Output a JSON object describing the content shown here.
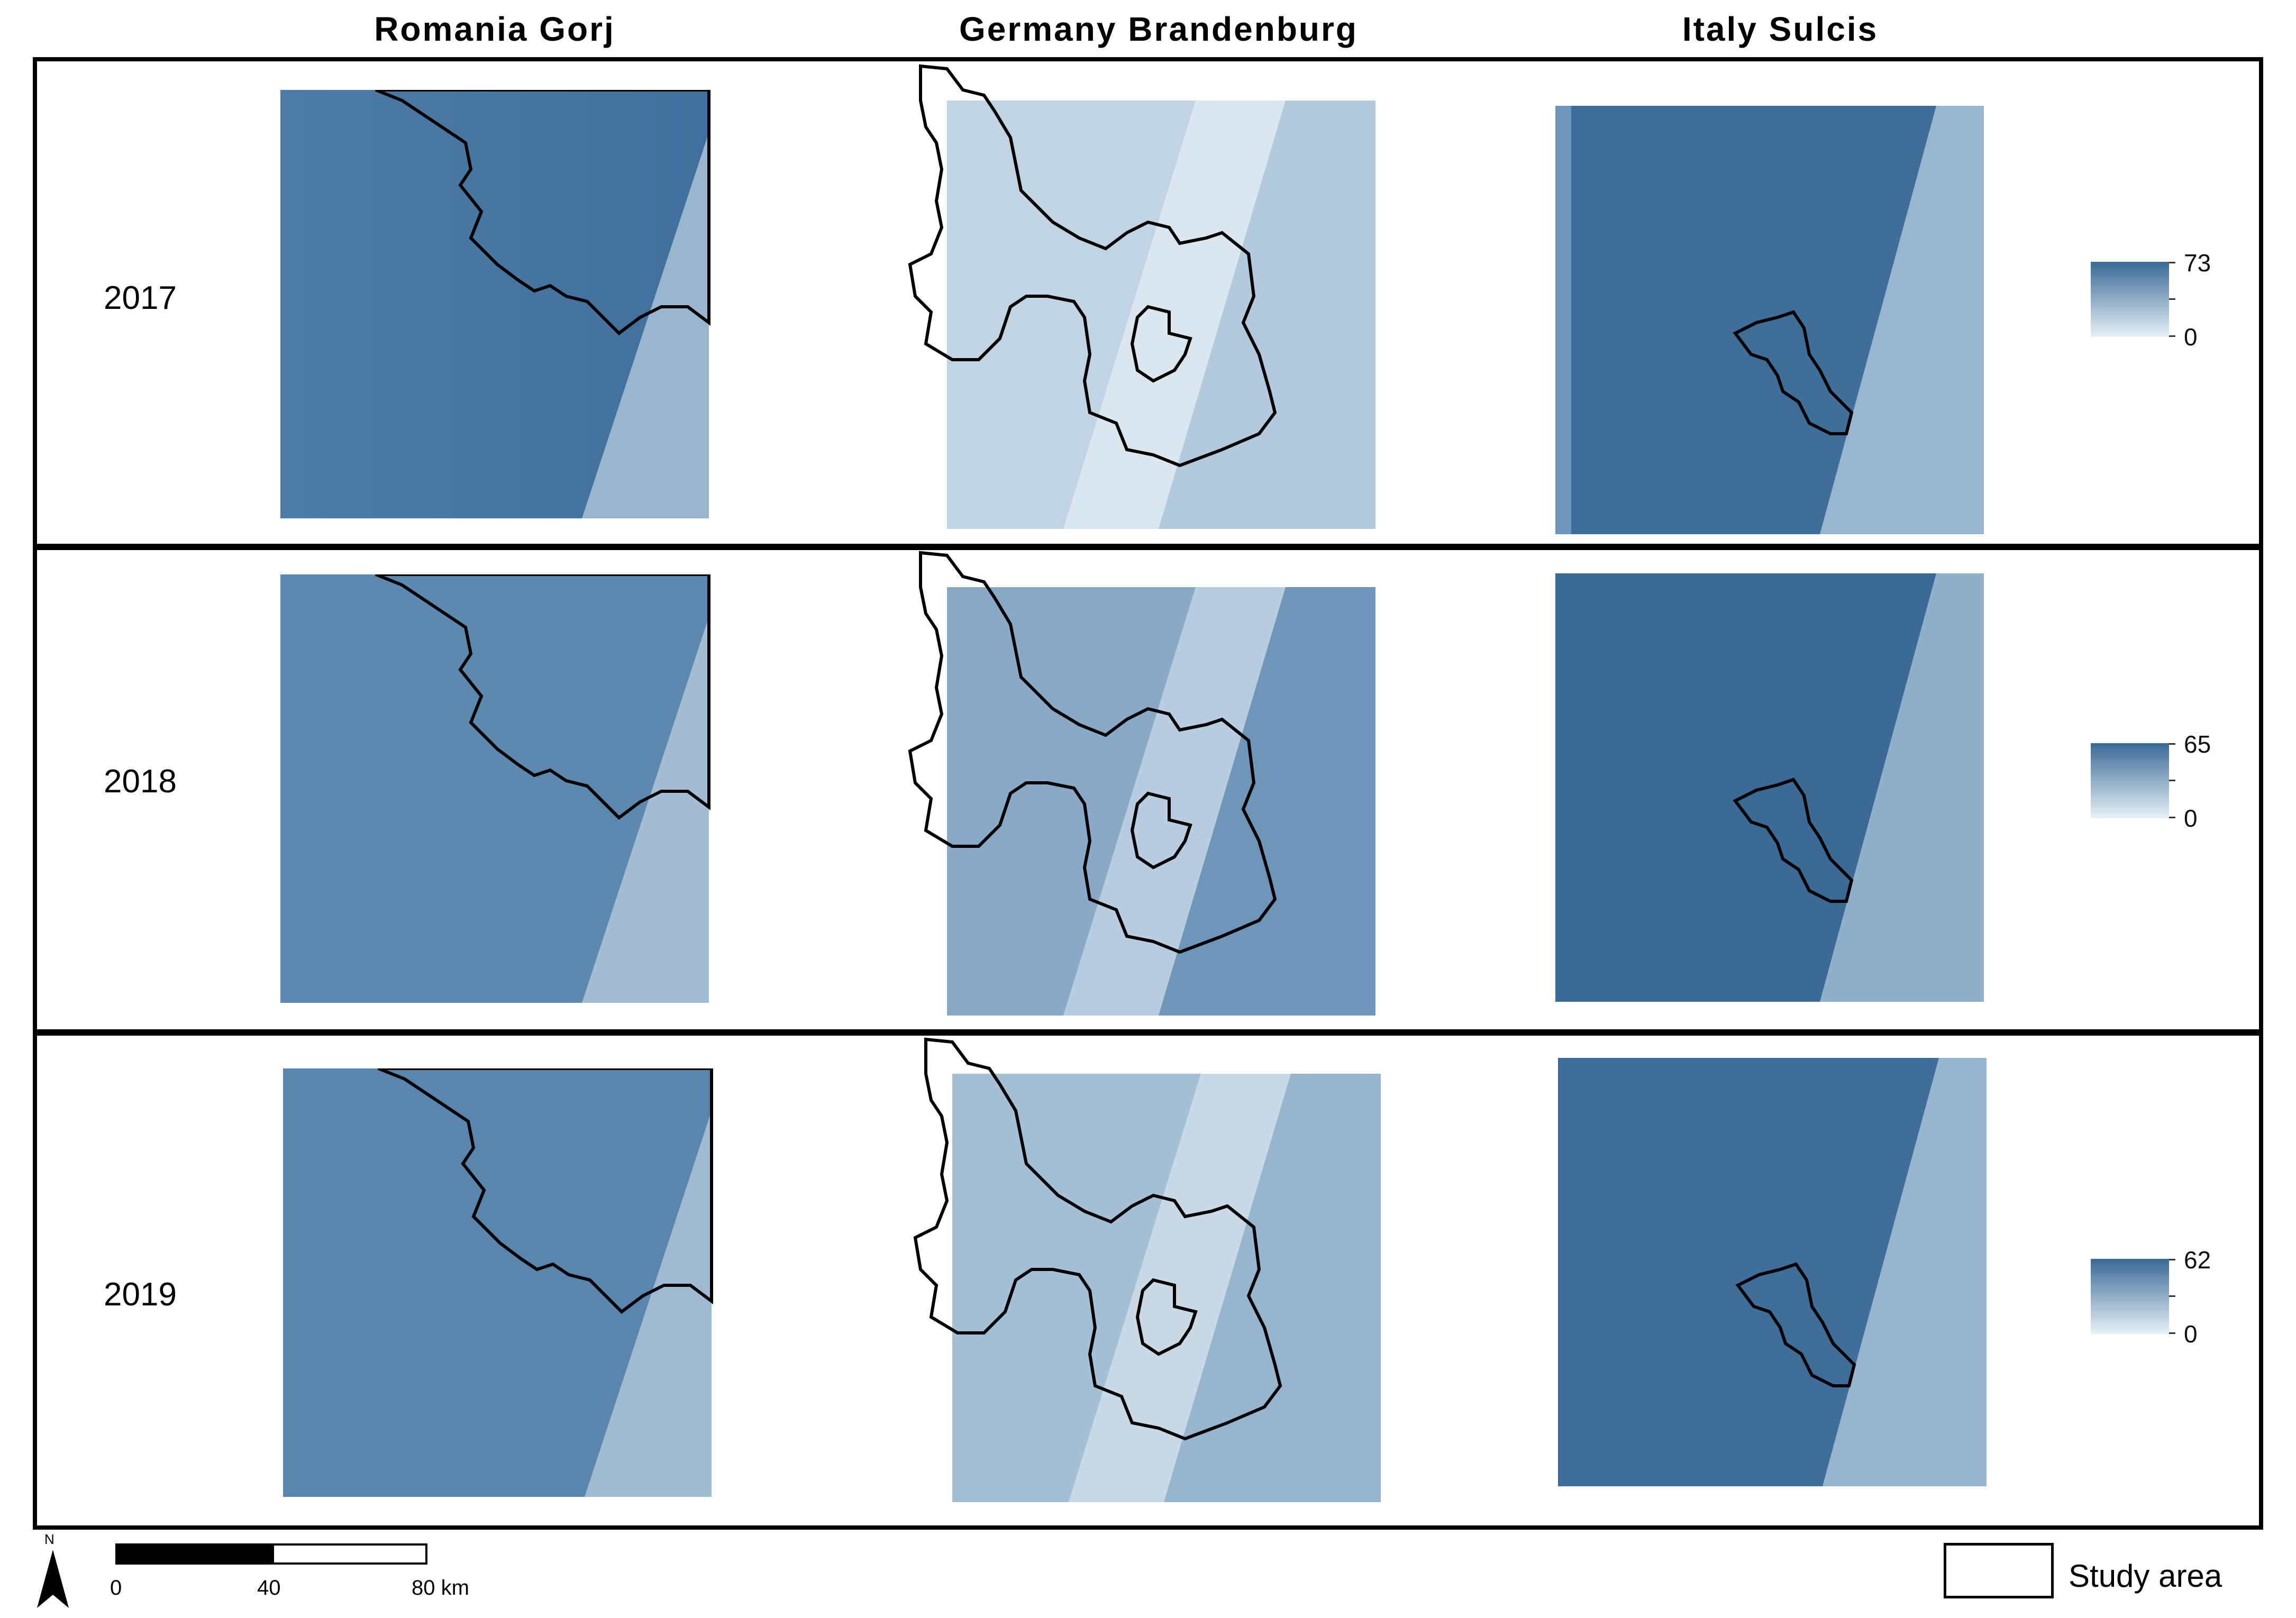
{
  "columns": [
    "Romania Gorj",
    "Germany Brandenburg",
    "Italy Sulcis"
  ],
  "rows": [
    {
      "year": "2017",
      "legend_max": "73",
      "legend_min": "0"
    },
    {
      "year": "2018",
      "legend_max": "65",
      "legend_min": "0"
    },
    {
      "year": "2019",
      "legend_max": "62",
      "legend_min": "0"
    }
  ],
  "scale_bar": {
    "labels": [
      "0",
      "40",
      "80 km"
    ]
  },
  "north_label": "N",
  "legend_study_area": "Study area",
  "colors": {
    "dark_blue": "#3b6a97",
    "light_blue": "#e7f0f5",
    "boundary": "#000000"
  }
}
